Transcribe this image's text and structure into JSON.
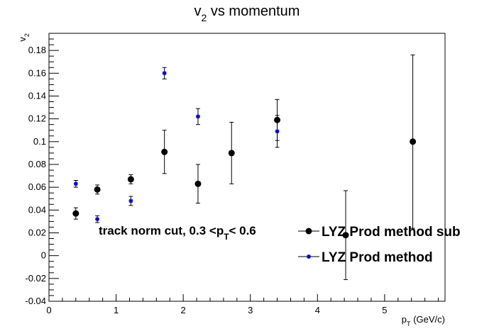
{
  "chart_data": {
    "type": "scatter",
    "title": {
      "main": "v",
      "sub": "2",
      "rest": " vs momentum"
    },
    "xlabel": {
      "main": "p",
      "sub": "T",
      "rest": " (GeV/c)"
    },
    "ylabel": {
      "main": "v",
      "sub": "2"
    },
    "xlim": [
      0,
      5.9
    ],
    "ylim": [
      -0.04,
      0.195
    ],
    "xticks": [
      0,
      1,
      2,
      3,
      4,
      5
    ],
    "yticks": [
      -0.04,
      -0.02,
      0,
      0.02,
      0.04,
      0.06,
      0.08,
      0.1,
      0.12,
      0.14,
      0.16,
      0.18
    ],
    "ytick_labels": [
      "-0.04",
      "-0.02",
      "0",
      "0.02",
      "0.04",
      "0.06",
      "0.08",
      "0.1",
      "0.12",
      "0.14",
      "0.16",
      "0.18"
    ],
    "grid": false,
    "legend_position": "bottom-right",
    "annotation": {
      "pre": "track norm cut, 0.3 <p",
      "sub": "T",
      "post": "< 0.6"
    },
    "series": [
      {
        "name": "LYZ Prod method sub",
        "marker": "circle",
        "color": "#000000",
        "x": [
          0.4,
          0.72,
          1.22,
          1.72,
          2.22,
          2.72,
          3.4,
          4.42,
          5.42
        ],
        "y": [
          0.037,
          0.058,
          0.067,
          0.091,
          0.063,
          0.09,
          0.119,
          0.018,
          0.1
        ],
        "err": [
          0.005,
          0.004,
          0.004,
          0.019,
          0.017,
          0.027,
          0.018,
          0.039,
          0.076
        ]
      },
      {
        "name": "LYZ Prod method",
        "marker": "star",
        "color": "#0000cc",
        "x": [
          0.4,
          0.72,
          1.22,
          1.72,
          2.22,
          3.4
        ],
        "y": [
          0.063,
          0.032,
          0.048,
          0.16,
          0.122,
          0.109
        ],
        "err": [
          0.003,
          0.003,
          0.004,
          0.005,
          0.007,
          0.014
        ]
      }
    ]
  }
}
